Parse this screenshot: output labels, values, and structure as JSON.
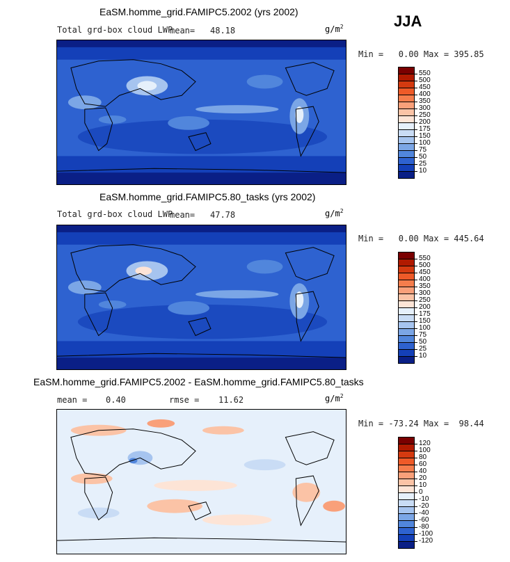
{
  "season": "JJA",
  "units_base": "g/m",
  "units_exp": "2",
  "panels": [
    {
      "title": "EaSM.homme_grid.FAMIPC5.2002 (yrs 2002)",
      "variable": "Total grd-box cloud LWP",
      "mean_label": "mean=",
      "mean_value": "48.18",
      "min_max": "Min =   0.00 Max = 395.85",
      "colorbar": {
        "labels": [
          "550",
          "500",
          "450",
          "400",
          "350",
          "300",
          "250",
          "200",
          "175",
          "150",
          "100",
          "75",
          "50",
          "25",
          "10"
        ],
        "colors": [
          "#7a0000",
          "#b01a00",
          "#d43a10",
          "#ee5a28",
          "#f57d4c",
          "#f9a07a",
          "#fbc3a6",
          "#fde4d6",
          "#e6f0fb",
          "#c9dcf5",
          "#a6c4ef",
          "#7ba6e6",
          "#5186dc",
          "#2e62d0",
          "#1440b8",
          "#0a1f86"
        ]
      }
    },
    {
      "title": "EaSM.homme_grid.FAMIPC5.80_tasks (yrs 2002)",
      "variable": "Total grd-box cloud LWP",
      "mean_label": "mean=",
      "mean_value": "47.78",
      "min_max": "Min =   0.00 Max = 445.64",
      "colorbar": {
        "labels": [
          "550",
          "500",
          "450",
          "400",
          "350",
          "300",
          "250",
          "200",
          "175",
          "150",
          "100",
          "75",
          "50",
          "25",
          "10"
        ],
        "colors": [
          "#7a0000",
          "#b01a00",
          "#d43a10",
          "#ee5a28",
          "#f57d4c",
          "#f9a07a",
          "#fbc3a6",
          "#fde4d6",
          "#e6f0fb",
          "#c9dcf5",
          "#a6c4ef",
          "#7ba6e6",
          "#5186dc",
          "#2e62d0",
          "#1440b8",
          "#0a1f86"
        ]
      }
    },
    {
      "title": "EaSM.homme_grid.FAMIPC5.2002 - EaSM.homme_grid.FAMIPC5.80_tasks",
      "mean_label": "mean =",
      "mean_value": "0.40",
      "rmse_label": "rmse =",
      "rmse_value": "11.62",
      "min_max": "Min = -73.24 Max =  98.44",
      "colorbar": {
        "labels": [
          "120",
          "100",
          "80",
          "60",
          "40",
          "20",
          "10",
          "0",
          "-10",
          "-20",
          "-40",
          "-60",
          "-80",
          "-100",
          "-120"
        ],
        "colors": [
          "#7a0000",
          "#b01a00",
          "#d43a10",
          "#ee5a28",
          "#f57d4c",
          "#f9a07a",
          "#fbc3a6",
          "#fde4d6",
          "#e6f0fb",
          "#c9dcf5",
          "#a6c4ef",
          "#7ba6e6",
          "#5186dc",
          "#2e62d0",
          "#1440b8",
          "#0a1f86"
        ]
      }
    }
  ]
}
